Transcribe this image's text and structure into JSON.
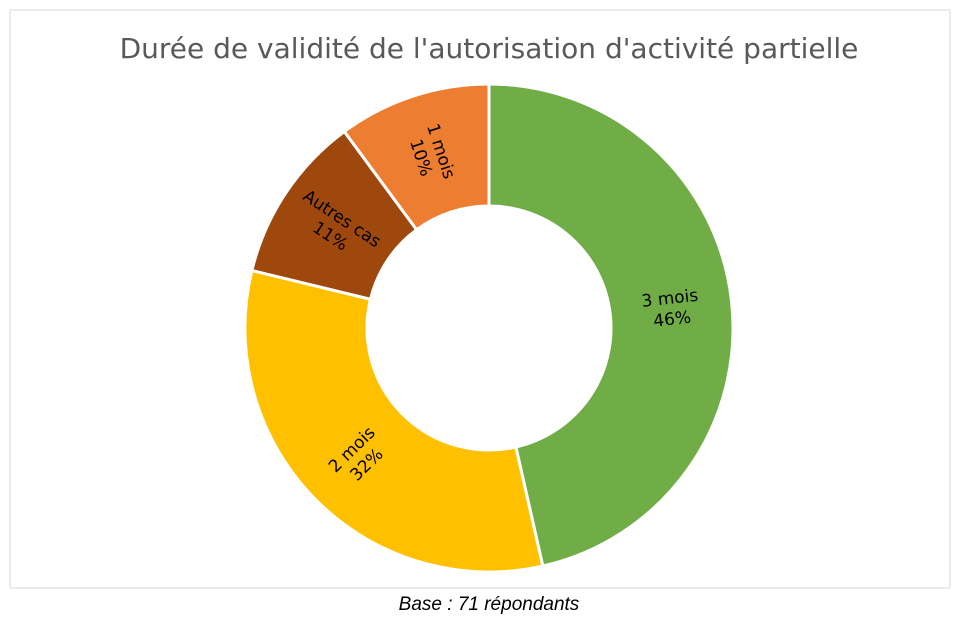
{
  "chart_data": {
    "type": "donut",
    "title": "Durée de validité de l'autorisation d'activité partielle",
    "categories": [
      "3 mois",
      "2 mois",
      "Autres cas",
      "1 mois"
    ],
    "values": [
      46,
      32,
      11,
      10
    ],
    "value_labels": [
      "46%",
      "32%",
      "11%",
      "10%"
    ],
    "colors": [
      "#70ad47",
      "#ffc000",
      "#9e480e",
      "#ed7d31"
    ]
  },
  "caption": "Base : 71 répondants"
}
